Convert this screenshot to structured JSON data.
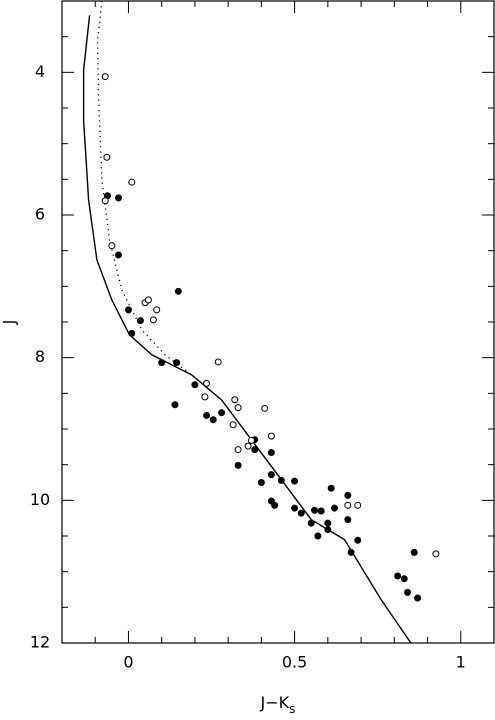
{
  "chart_data": {
    "type": "scatter",
    "xlabel": "J−K",
    "xlabel_sub": "s",
    "ylabel": "J",
    "xlim": [
      -0.2,
      1.1
    ],
    "ylim": [
      3,
      12
    ],
    "y_inverted": true,
    "xticks": [
      0,
      0.5,
      1
    ],
    "yticks": [
      4,
      6,
      8,
      10,
      12
    ],
    "xticks_minor": [
      -0.1,
      0.1,
      0.2,
      0.3,
      0.4,
      0.6,
      0.7,
      0.8,
      0.9
    ],
    "yticks_minor": [
      3.5,
      4.5,
      5,
      5.5,
      6.5,
      7,
      7.5,
      8.5,
      9,
      9.5,
      10.5,
      11,
      11.5
    ],
    "color": "#000000",
    "series": [
      {
        "kind": "line",
        "dash": false,
        "x": [
          -0.117,
          -0.135,
          -0.135,
          -0.12,
          -0.095,
          -0.05,
          0.003,
          0.07,
          0.19,
          0.28,
          0.37,
          0.46,
          0.55,
          0.65,
          0.76,
          0.85
        ],
        "values": [
          3.2,
          3.97,
          4.67,
          5.79,
          6.63,
          7.19,
          7.68,
          7.96,
          8.24,
          8.59,
          9.15,
          9.71,
          10.27,
          10.55,
          11.39,
          12.0
        ]
      },
      {
        "kind": "line",
        "dash": true,
        "x": [
          -0.08,
          -0.093,
          -0.09,
          -0.08,
          -0.057,
          -0.02,
          0.04,
          0.11,
          0.19
        ],
        "values": [
          3.0,
          3.55,
          4.39,
          5.51,
          6.35,
          7.05,
          7.61,
          7.96,
          8.24
        ]
      },
      {
        "kind": "points",
        "filled": true,
        "x": [
          -0.063,
          -0.03,
          -0.03,
          0.15,
          0.0,
          0.036,
          0.01,
          0.1,
          0.145,
          0.2,
          0.14,
          0.235,
          0.255,
          0.28,
          0.33,
          0.38,
          0.38,
          0.4,
          0.43,
          0.43,
          0.43,
          0.44,
          0.46,
          0.5,
          0.5,
          0.52,
          0.56,
          0.55,
          0.57,
          0.58,
          0.6,
          0.6,
          0.62,
          0.61,
          0.66,
          0.66,
          0.67,
          0.69,
          0.86,
          0.81,
          0.83,
          0.84,
          0.87
        ],
        "values": [
          5.73,
          5.76,
          6.56,
          7.07,
          7.33,
          7.48,
          7.66,
          8.07,
          8.07,
          8.38,
          8.66,
          8.81,
          8.87,
          8.77,
          9.51,
          9.15,
          9.29,
          9.75,
          9.33,
          9.64,
          10.01,
          10.07,
          9.72,
          9.73,
          10.11,
          10.18,
          10.14,
          10.32,
          10.5,
          10.15,
          10.32,
          10.41,
          10.11,
          9.83,
          10.27,
          9.93,
          10.73,
          10.56,
          10.73,
          11.06,
          11.1,
          11.29,
          11.37
        ]
      },
      {
        "kind": "points",
        "filled": false,
        "x": [
          -0.07,
          -0.065,
          0.01,
          -0.07,
          -0.05,
          0.05,
          0.06,
          0.085,
          0.075,
          0.27,
          0.235,
          0.23,
          0.32,
          0.33,
          0.41,
          0.315,
          0.43,
          0.37,
          0.36,
          0.33,
          0.66,
          0.69,
          0.925
        ],
        "values": [
          4.06,
          5.19,
          5.54,
          5.8,
          6.43,
          7.23,
          7.19,
          7.33,
          7.47,
          8.06,
          8.36,
          8.55,
          8.59,
          8.7,
          8.71,
          8.94,
          9.1,
          9.16,
          9.24,
          9.29,
          10.07,
          10.07,
          10.75
        ]
      }
    ]
  }
}
